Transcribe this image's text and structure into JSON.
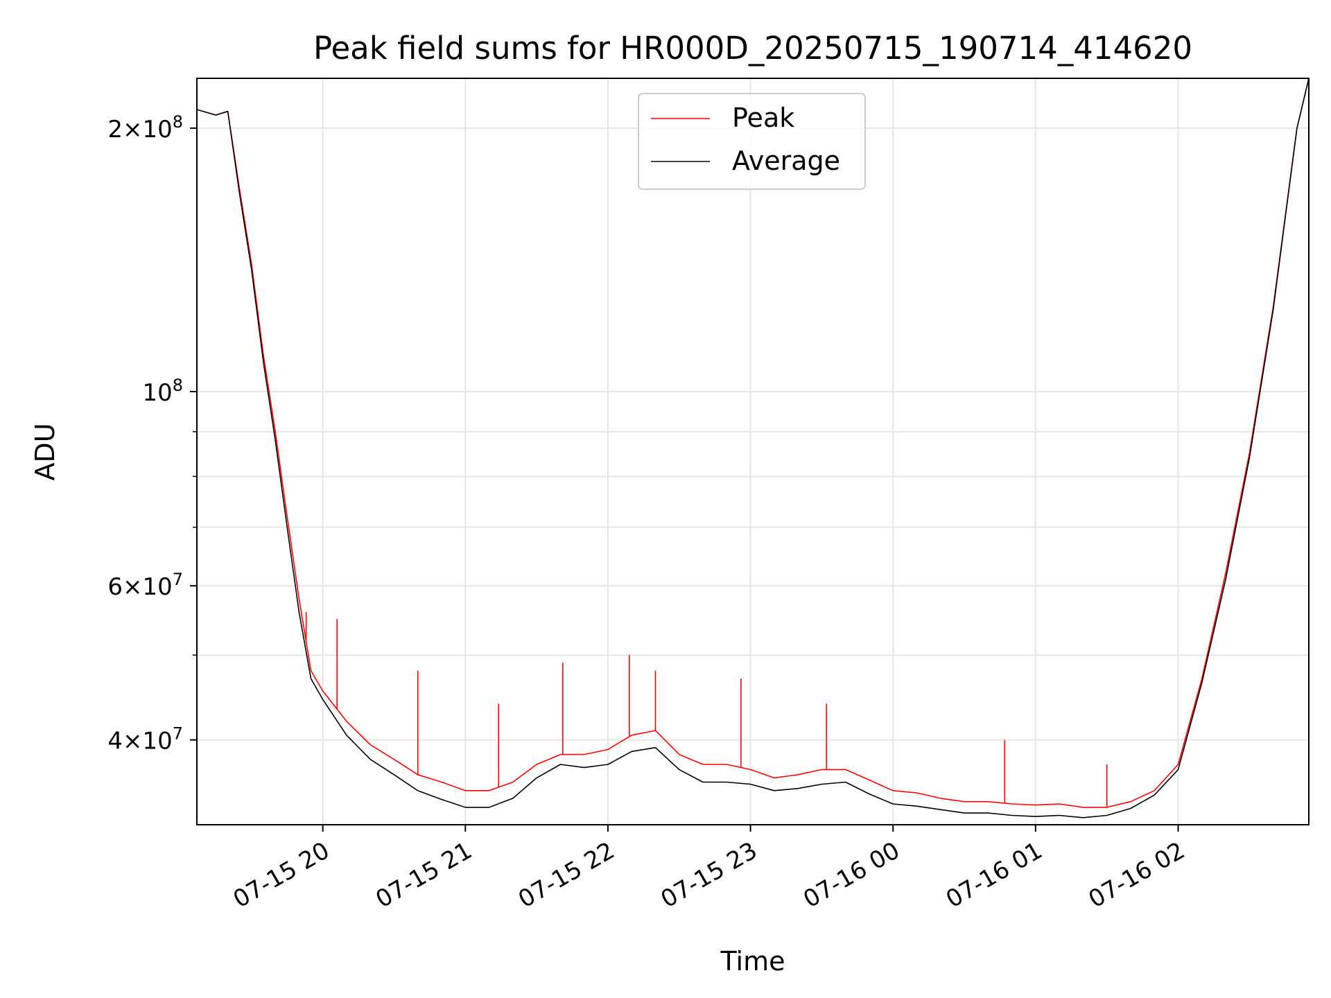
{
  "chart_data": {
    "type": "line",
    "title": "Peak field sums for HR000D_20250715_190714_414620",
    "xlabel": "Time",
    "ylabel": "ADU",
    "yscale": "log",
    "grid": true,
    "legend_position": "upper center",
    "xlim": [
      "2025-07-15 19:07",
      "2025-07-16 02:55"
    ],
    "ylim": [
      32000000,
      228000000
    ],
    "x_ticks": [
      {
        "value": "2025-07-15 20:00",
        "label": "07-15 20"
      },
      {
        "value": "2025-07-15 21:00",
        "label": "07-15 21"
      },
      {
        "value": "2025-07-15 22:00",
        "label": "07-15 22"
      },
      {
        "value": "2025-07-15 23:00",
        "label": "07-15 23"
      },
      {
        "value": "2025-07-16 00:00",
        "label": "07-16 00"
      },
      {
        "value": "2025-07-16 01:00",
        "label": "07-16 01"
      },
      {
        "value": "2025-07-16 02:00",
        "label": "07-16 02"
      }
    ],
    "y_ticks": [
      {
        "value": 40000000,
        "mant": "4",
        "exp": "7"
      },
      {
        "value": 60000000,
        "mant": "6",
        "exp": "7"
      },
      {
        "value": 100000000,
        "mant": "",
        "exp": "8"
      },
      {
        "value": 200000000,
        "mant": "2",
        "exp": "8"
      }
    ],
    "y_minor_ticks": [
      30000000,
      50000000,
      70000000,
      80000000,
      90000000
    ],
    "series": [
      {
        "name": "Peak",
        "color": "#ff0000",
        "x": [
          "2025-07-15 19:07",
          "2025-07-15 19:15",
          "2025-07-15 19:20",
          "2025-07-15 19:25",
          "2025-07-15 19:30",
          "2025-07-15 19:35",
          "2025-07-15 19:40",
          "2025-07-15 19:45",
          "2025-07-15 19:50",
          "2025-07-15 19:55",
          "2025-07-15 20:00",
          "2025-07-15 20:10",
          "2025-07-15 20:20",
          "2025-07-15 20:30",
          "2025-07-15 20:40",
          "2025-07-15 20:50",
          "2025-07-15 21:00",
          "2025-07-15 21:10",
          "2025-07-15 21:20",
          "2025-07-15 21:30",
          "2025-07-15 21:40",
          "2025-07-15 21:50",
          "2025-07-15 22:00",
          "2025-07-15 22:10",
          "2025-07-15 22:20",
          "2025-07-15 22:30",
          "2025-07-15 22:40",
          "2025-07-15 22:50",
          "2025-07-15 23:00",
          "2025-07-15 23:10",
          "2025-07-15 23:20",
          "2025-07-15 23:30",
          "2025-07-15 23:40",
          "2025-07-15 23:50",
          "2025-07-16 00:00",
          "2025-07-16 00:10",
          "2025-07-16 00:20",
          "2025-07-16 00:30",
          "2025-07-16 00:40",
          "2025-07-16 00:50",
          "2025-07-16 01:00",
          "2025-07-16 01:10",
          "2025-07-16 01:20",
          "2025-07-16 01:30",
          "2025-07-16 01:40",
          "2025-07-16 01:50",
          "2025-07-16 02:00",
          "2025-07-16 02:10",
          "2025-07-16 02:20",
          "2025-07-16 02:30",
          "2025-07-16 02:40",
          "2025-07-16 02:50",
          "2025-07-16 02:55"
        ],
        "y": [
          210000000,
          207000000,
          209000000,
          170000000,
          140000000,
          110000000,
          90000000,
          72000000,
          58000000,
          48000000,
          45500000,
          42000000,
          39500000,
          38000000,
          36500000,
          35800000,
          35000000,
          35000000,
          35800000,
          37500000,
          38500000,
          38500000,
          39000000,
          40500000,
          41000000,
          38500000,
          37500000,
          37500000,
          37000000,
          36200000,
          36500000,
          37000000,
          37000000,
          36000000,
          35000000,
          34800000,
          34300000,
          34000000,
          34000000,
          33800000,
          33700000,
          33800000,
          33500000,
          33500000,
          34000000,
          35000000,
          37500000,
          47000000,
          62000000,
          85000000,
          125000000,
          200000000,
          228000000
        ],
        "spikes": [
          {
            "x": "2025-07-15 19:53",
            "y": 56000000
          },
          {
            "x": "2025-07-15 20:06",
            "y": 55000000
          },
          {
            "x": "2025-07-15 20:40",
            "y": 48000000
          },
          {
            "x": "2025-07-15 21:14",
            "y": 44000000
          },
          {
            "x": "2025-07-15 21:41",
            "y": 49000000
          },
          {
            "x": "2025-07-15 22:09",
            "y": 50000000
          },
          {
            "x": "2025-07-15 22:20",
            "y": 48000000
          },
          {
            "x": "2025-07-15 22:56",
            "y": 47000000
          },
          {
            "x": "2025-07-15 23:32",
            "y": 44000000
          },
          {
            "x": "2025-07-16 00:47",
            "y": 40000000
          },
          {
            "x": "2025-07-16 01:30",
            "y": 37500000
          }
        ]
      },
      {
        "name": "Average",
        "color": "#000000",
        "x": [
          "2025-07-15 19:07",
          "2025-07-15 19:15",
          "2025-07-15 19:20",
          "2025-07-15 19:25",
          "2025-07-15 19:30",
          "2025-07-15 19:35",
          "2025-07-15 19:40",
          "2025-07-15 19:45",
          "2025-07-15 19:50",
          "2025-07-15 19:55",
          "2025-07-15 20:00",
          "2025-07-15 20:10",
          "2025-07-15 20:20",
          "2025-07-15 20:30",
          "2025-07-15 20:40",
          "2025-07-15 20:50",
          "2025-07-15 21:00",
          "2025-07-15 21:10",
          "2025-07-15 21:20",
          "2025-07-15 21:30",
          "2025-07-15 21:40",
          "2025-07-15 21:50",
          "2025-07-15 22:00",
          "2025-07-15 22:10",
          "2025-07-15 22:20",
          "2025-07-15 22:30",
          "2025-07-15 22:40",
          "2025-07-15 22:50",
          "2025-07-15 23:00",
          "2025-07-15 23:10",
          "2025-07-15 23:20",
          "2025-07-15 23:30",
          "2025-07-15 23:40",
          "2025-07-15 23:50",
          "2025-07-16 00:00",
          "2025-07-16 00:10",
          "2025-07-16 00:20",
          "2025-07-16 00:30",
          "2025-07-16 00:40",
          "2025-07-16 00:50",
          "2025-07-16 01:00",
          "2025-07-16 01:10",
          "2025-07-16 01:20",
          "2025-07-16 01:30",
          "2025-07-16 01:40",
          "2025-07-16 01:50",
          "2025-07-16 02:00",
          "2025-07-16 02:10",
          "2025-07-16 02:20",
          "2025-07-16 02:30",
          "2025-07-16 02:40",
          "2025-07-16 02:50",
          "2025-07-16 02:55"
        ],
        "y": [
          210000000,
          207000000,
          209000000,
          168000000,
          138000000,
          108000000,
          88000000,
          70000000,
          56000000,
          47000000,
          44500000,
          40500000,
          38000000,
          36500000,
          35000000,
          34200000,
          33500000,
          33500000,
          34300000,
          36200000,
          37500000,
          37200000,
          37500000,
          38800000,
          39200000,
          37000000,
          35800000,
          35800000,
          35600000,
          35000000,
          35200000,
          35600000,
          35800000,
          34700000,
          33800000,
          33600000,
          33300000,
          33000000,
          33000000,
          32800000,
          32700000,
          32800000,
          32600000,
          32800000,
          33400000,
          34600000,
          37000000,
          46500000,
          61000000,
          84000000,
          124000000,
          200000000,
          228000000
        ]
      }
    ]
  }
}
